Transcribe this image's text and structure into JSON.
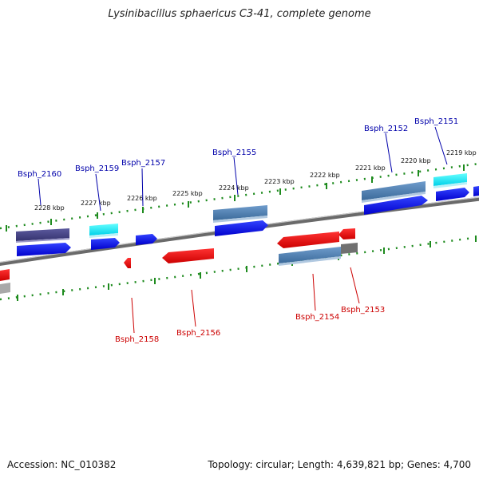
{
  "title": "Lysinibacillus sphaericus C3-41, complete genome",
  "accession": "Accession: NC_010382",
  "topology": "Topology: circular; Length: 4,639,821 bp; Genes: 4,700",
  "colors": {
    "plus_gene": "#0000ee",
    "minus_gene": "#ee0000",
    "plus_label": "#0000aa",
    "minus_label": "#cc0000",
    "tick": "#1e8b1e",
    "backbone": "#808080"
  },
  "scale_labels": [
    "2228 kbp",
    "2227 kbp",
    "2226 kbp",
    "2225 kbp",
    "2224 kbp",
    "2223 kbp",
    "2222 kbp",
    "2221 kbp",
    "2220 kbp",
    "2219 kbp"
  ],
  "plus_labels": [
    "Bsph_2160",
    "Bsph_2159",
    "Bsph_2157",
    "Bsph_2155",
    "Bsph_2152",
    "Bsph_2151"
  ],
  "minus_labels": [
    "Bsph_2158",
    "Bsph_2156",
    "Bsph_2154",
    "Bsph_2153"
  ]
}
